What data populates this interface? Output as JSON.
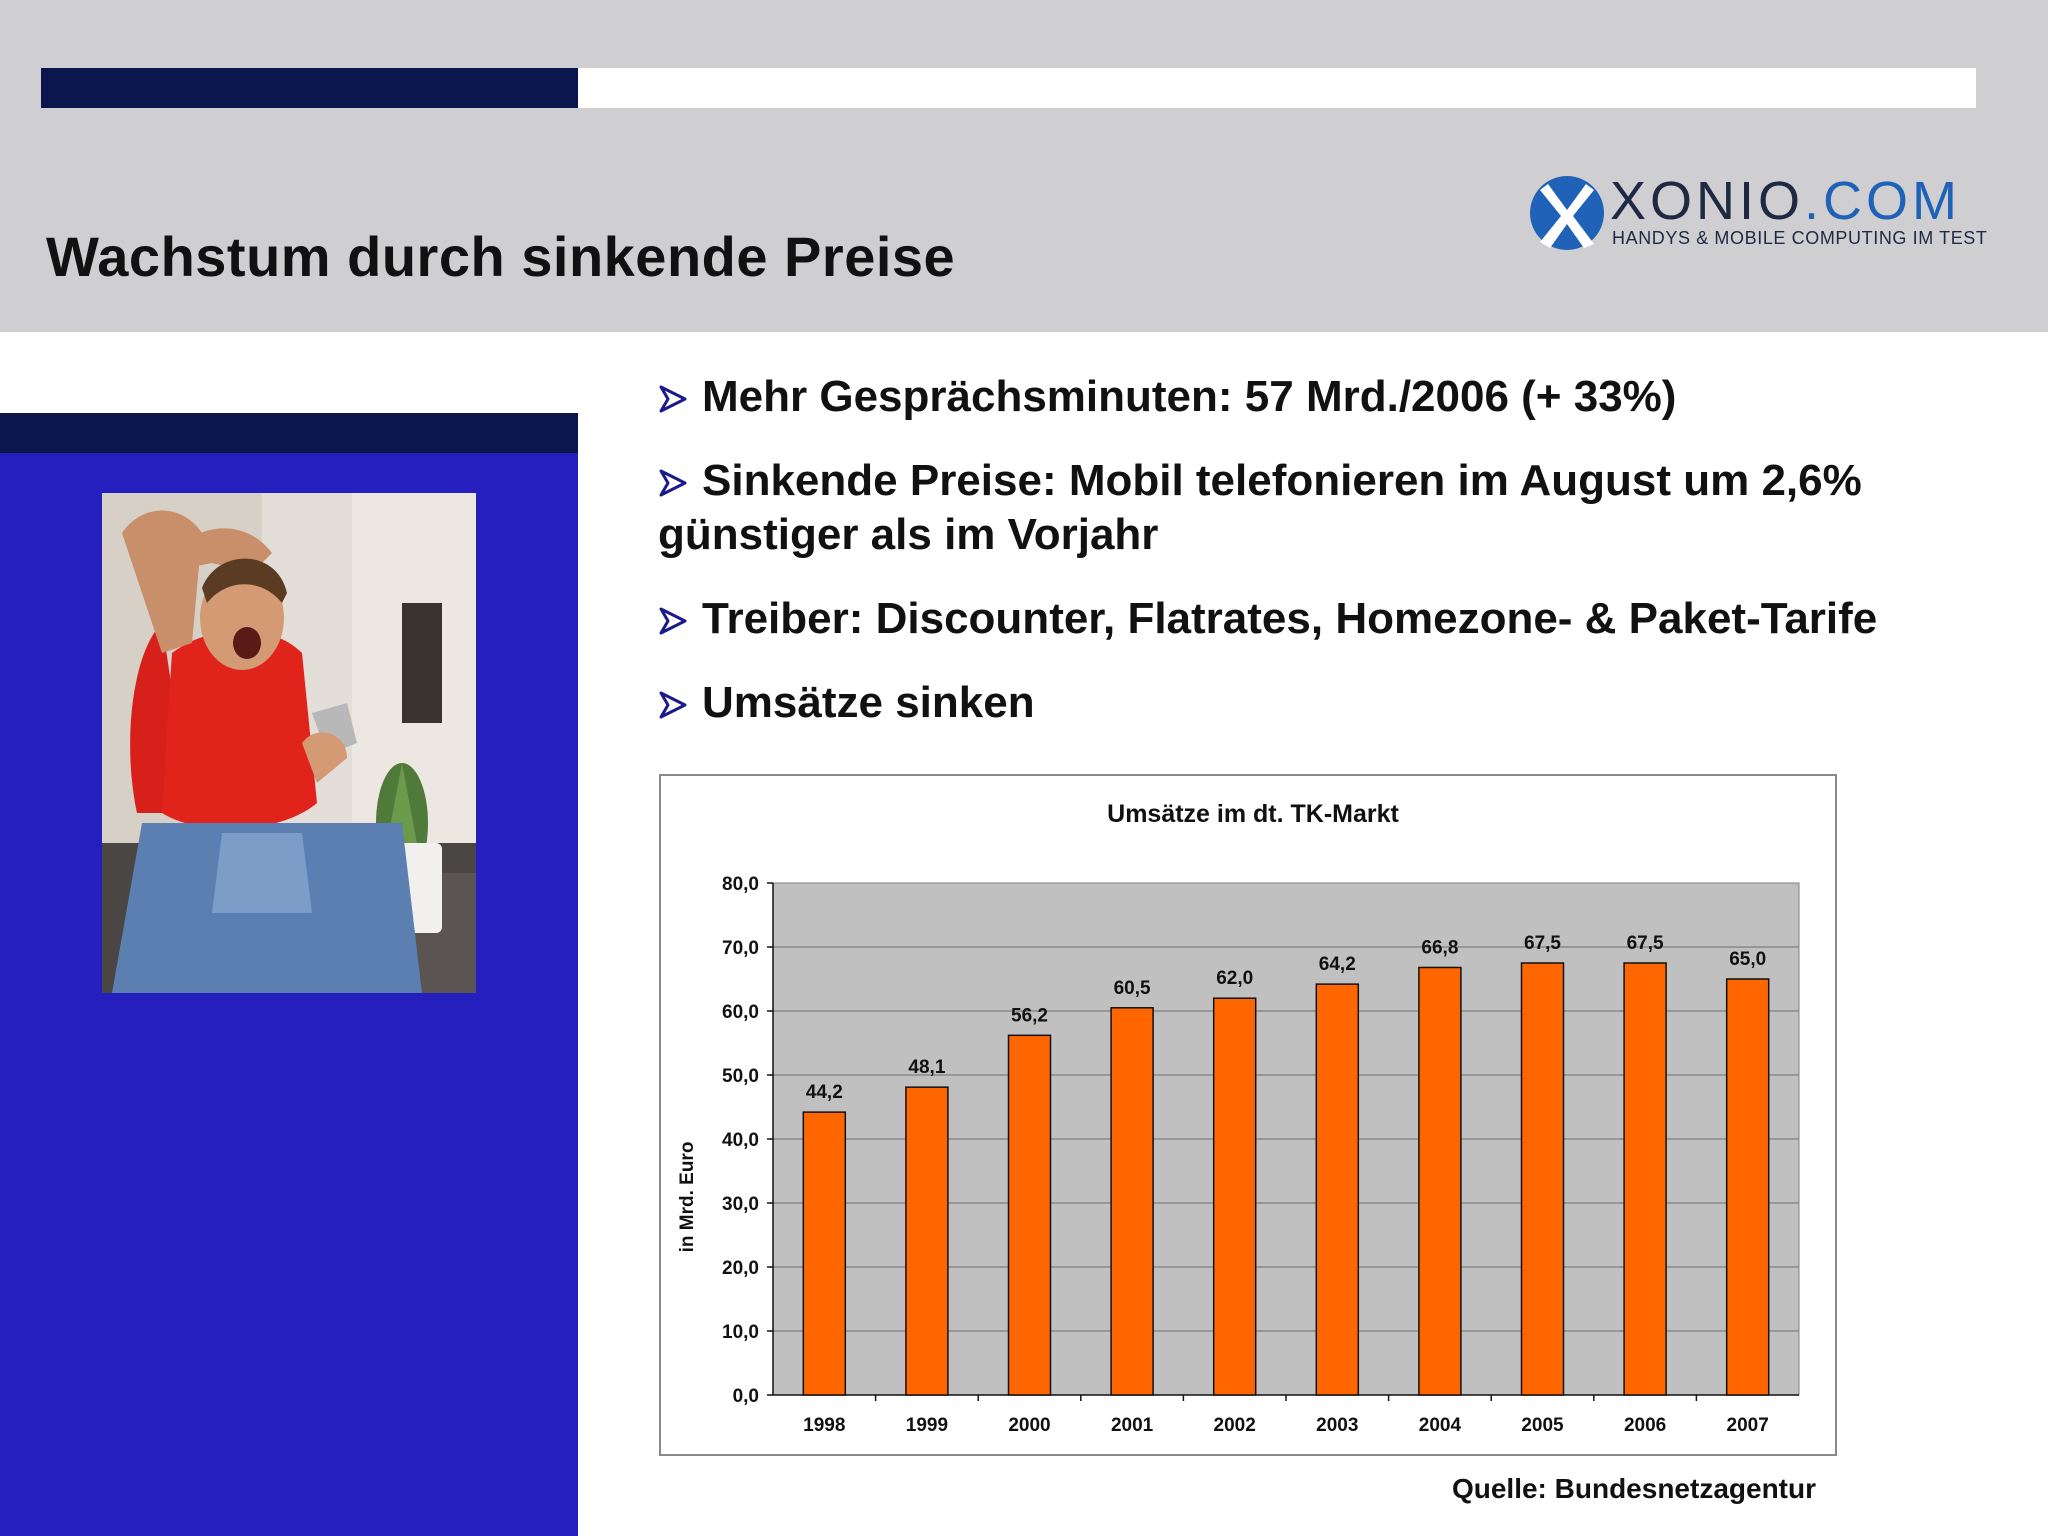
{
  "slide": {
    "title": "Wachstum durch sinkende Preise",
    "source": "Quelle: Bundesnetzagentur"
  },
  "logo": {
    "name_main": "XONIO",
    "name_suffix": ".COM",
    "tagline": "HANDYS & MOBILE COMPUTING IM TEST"
  },
  "bullets": [
    "Mehr Gesprächsminuten: 57 Mrd./2006 (+ 33%)",
    "Sinkende Preise: Mobil telefonieren im August um 2,6% günstiger als im Vorjahr",
    "Treiber: Discounter, Flatrates, Homezone- & Paket-Tarife",
    "Umsätze sinken"
  ],
  "colors": {
    "header_gray": "#cfcfd1",
    "navy": "#0b164f",
    "blue_panel": "#241fbd",
    "bar_orange": "#ff6600",
    "plot_gray": "#c0c0c0"
  },
  "chart_data": {
    "type": "bar",
    "title": "Umsätze im dt. TK-Markt",
    "ylabel": "in Mrd. Euro",
    "xlabel": "",
    "categories": [
      "1998",
      "1999",
      "2000",
      "2001",
      "2002",
      "2003",
      "2004",
      "2005",
      "2006",
      "2007"
    ],
    "values": [
      44.2,
      48.1,
      56.2,
      60.5,
      62.0,
      64.2,
      66.8,
      67.5,
      67.5,
      65.0
    ],
    "value_labels": [
      "44,2",
      "48,1",
      "56,2",
      "60,5",
      "62,0",
      "64,2",
      "66,8",
      "67,5",
      "67,5",
      "65,0"
    ],
    "ylim": [
      0,
      80
    ],
    "yticks": [
      "0,0",
      "10,0",
      "20,0",
      "30,0",
      "40,0",
      "50,0",
      "60,0",
      "70,0",
      "80,0"
    ],
    "grid": true,
    "legend": "none"
  }
}
